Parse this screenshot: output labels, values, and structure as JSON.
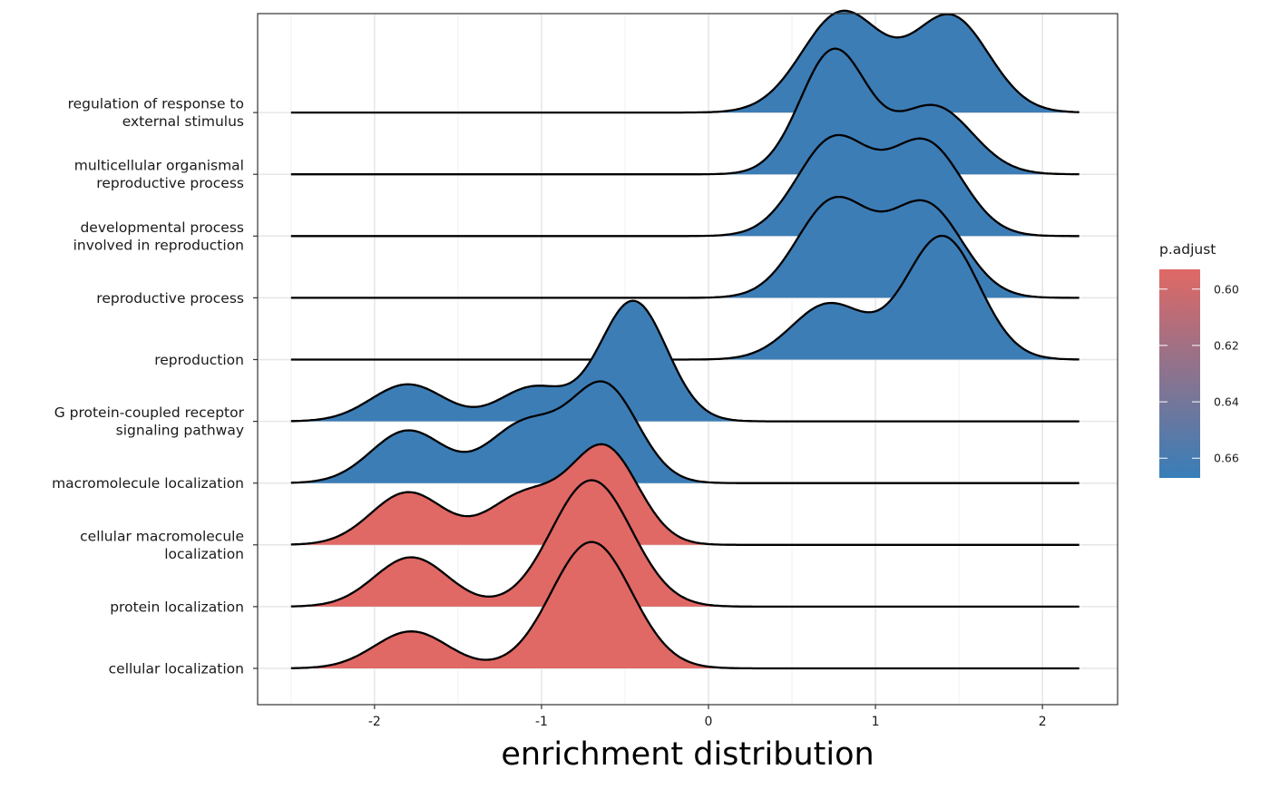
{
  "chart_data": {
    "type": "ridgeline",
    "xlabel": "enrichment distribution",
    "ylabel": "",
    "xlim": [
      -2.7,
      2.45
    ],
    "xticks": [
      -2,
      -1,
      0,
      1,
      2
    ],
    "x_range_of_curves": [
      -2.5,
      2.22
    ],
    "grid": true,
    "legend": {
      "title": "p.adjust",
      "position": "right",
      "ticks": [
        "0.60",
        "0.62",
        "0.64",
        "0.66"
      ],
      "tick_values": [
        0.6,
        0.62,
        0.64,
        0.66
      ],
      "range": [
        0.593,
        0.667
      ],
      "low_color": "#E06865",
      "high_color": "#377EB8"
    },
    "series": [
      {
        "name": "regulation of response to external stimulus",
        "label_lines": [
          "regulation of response to",
          "external stimulus"
        ],
        "p_adjust": 0.665,
        "peaks": [
          [
            0.8,
            0.24,
            1.62
          ],
          [
            1.45,
            0.23,
            1.55
          ]
        ]
      },
      {
        "name": "multicellular organismal reproductive process",
        "label_lines": [
          "multicellular organismal",
          "reproductive process"
        ],
        "p_adjust": 0.665,
        "peaks": [
          [
            0.75,
            0.2,
            2.0
          ],
          [
            1.35,
            0.23,
            1.1
          ]
        ]
      },
      {
        "name": "developmental process involved in reproduction",
        "label_lines": [
          "developmental process",
          "involved in reproduction"
        ],
        "p_adjust": 0.665,
        "peaks": [
          [
            0.75,
            0.22,
            1.56
          ],
          [
            1.3,
            0.22,
            1.5
          ]
        ]
      },
      {
        "name": "reproductive process",
        "label_lines": [
          "reproductive process"
        ],
        "p_adjust": 0.665,
        "peaks": [
          [
            0.75,
            0.22,
            1.56
          ],
          [
            1.3,
            0.22,
            1.5
          ]
        ]
      },
      {
        "name": "reproduction",
        "label_lines": [
          "reproduction"
        ],
        "p_adjust": 0.665,
        "peaks": [
          [
            0.72,
            0.22,
            0.9
          ],
          [
            1.4,
            0.22,
            2.0
          ]
        ]
      },
      {
        "name": "G protein-coupled receptor signaling pathway",
        "label_lines": [
          "G protein-coupled receptor",
          "signaling pathway"
        ],
        "p_adjust": 0.665,
        "peaks": [
          [
            -1.8,
            0.22,
            0.6
          ],
          [
            -1.05,
            0.2,
            0.55
          ],
          [
            -0.45,
            0.2,
            1.95
          ]
        ]
      },
      {
        "name": "macromolecule localization",
        "label_lines": [
          "macromolecule localization"
        ],
        "p_adjust": 0.665,
        "peaks": [
          [
            -1.8,
            0.22,
            0.85
          ],
          [
            -1.1,
            0.22,
            0.95
          ],
          [
            -0.62,
            0.2,
            1.55
          ]
        ]
      },
      {
        "name": "cellular macromolecule localization",
        "label_lines": [
          "cellular macromolecule",
          "localization"
        ],
        "p_adjust": 0.593,
        "peaks": [
          [
            -1.8,
            0.22,
            0.85
          ],
          [
            -1.1,
            0.22,
            0.8
          ],
          [
            -0.62,
            0.2,
            1.55
          ]
        ]
      },
      {
        "name": "protein localization",
        "label_lines": [
          "protein localization"
        ],
        "p_adjust": 0.593,
        "peaks": [
          [
            -1.78,
            0.22,
            0.8
          ],
          [
            -0.7,
            0.24,
            2.05
          ]
        ]
      },
      {
        "name": "cellular localization",
        "label_lines": [
          "cellular localization"
        ],
        "p_adjust": 0.593,
        "peaks": [
          [
            -1.78,
            0.22,
            0.6
          ],
          [
            -0.7,
            0.24,
            2.05
          ]
        ]
      }
    ]
  }
}
